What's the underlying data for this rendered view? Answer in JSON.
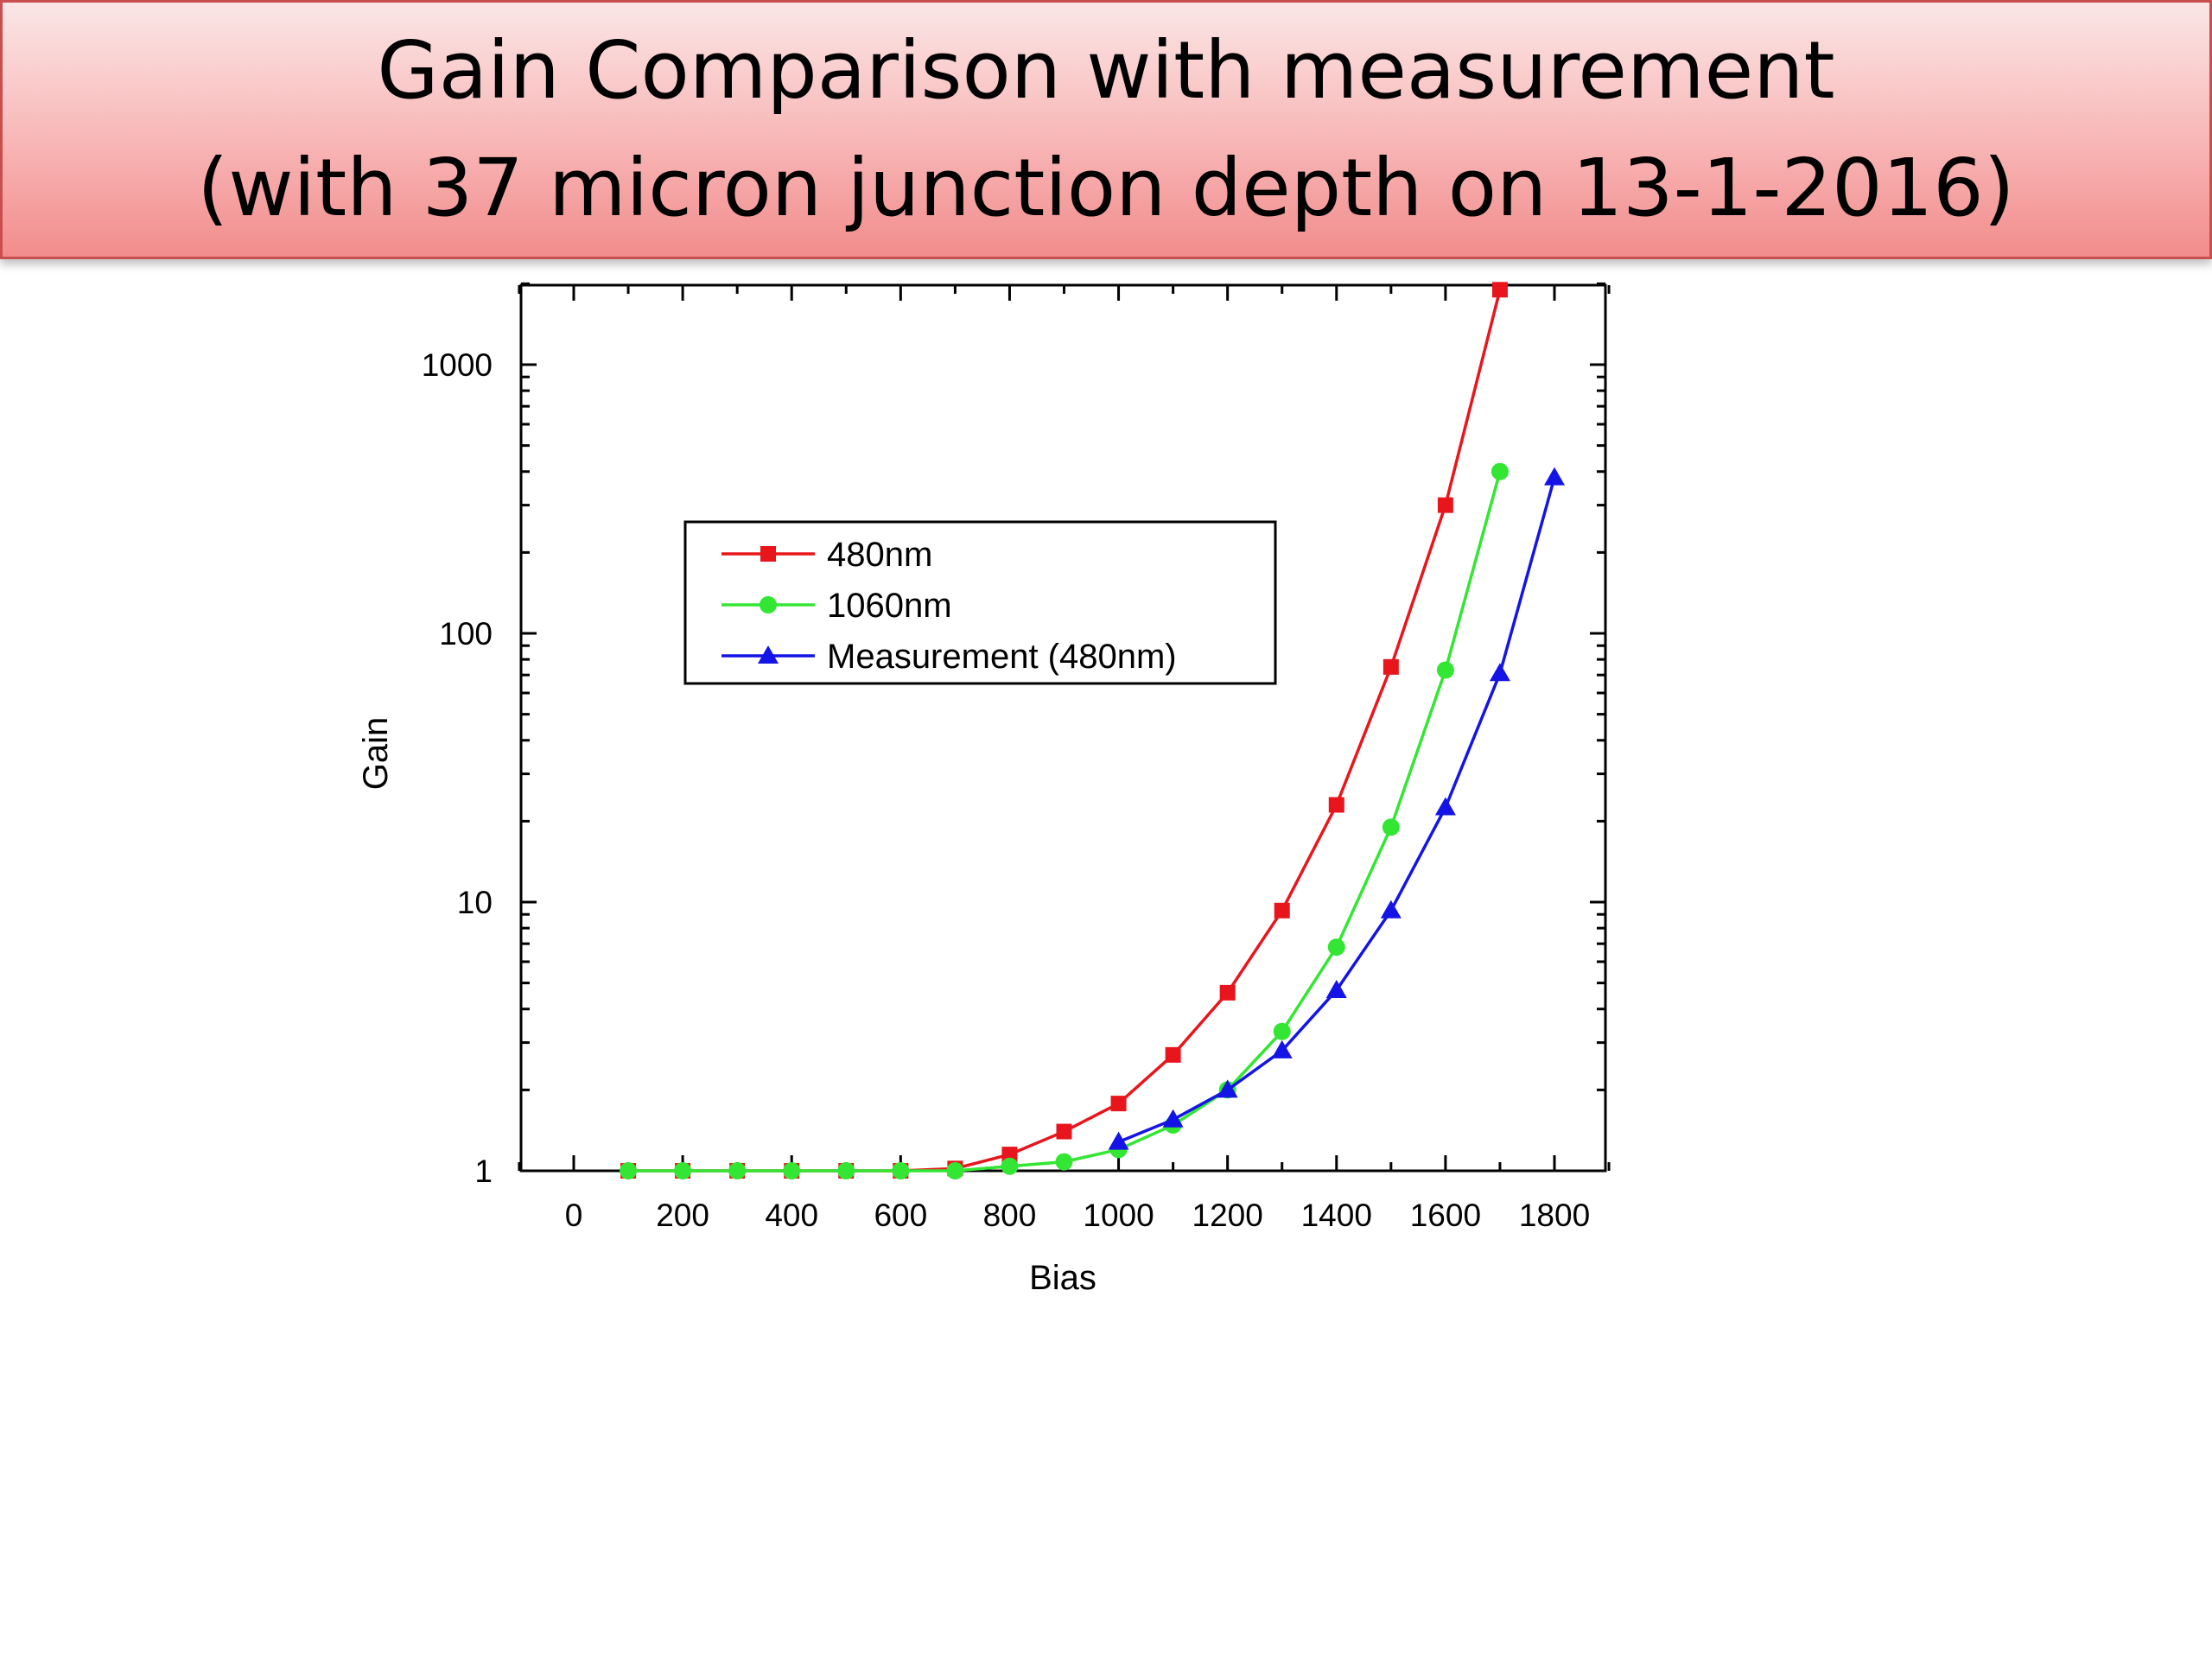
{
  "slide": {
    "title_line1": "Gain Comparison with measurement",
    "title_line2": "(with 37 micron junction depth on 13-1-2016)"
  },
  "chart_data": {
    "type": "line",
    "title": "",
    "xlabel": "Bias",
    "ylabel": "Gain",
    "xlim": [
      -100,
      1900
    ],
    "ylim": [
      1,
      2000
    ],
    "yscale": "log",
    "xticks": [
      0,
      200,
      400,
      600,
      800,
      1000,
      1200,
      1400,
      1600,
      1800
    ],
    "xtick_labels": [
      "0",
      "200",
      "400",
      "600",
      "800",
      "1000",
      "1200",
      "1400",
      "1600",
      "1800"
    ],
    "yticks": [
      1,
      10,
      100,
      1000
    ],
    "ytick_labels": [
      "1",
      "10",
      "100",
      "1000"
    ],
    "grid": false,
    "legend_position": "upper-left",
    "series": [
      {
        "name": "480nm",
        "color": "#e8161c",
        "marker": "square",
        "x": [
          100,
          200,
          300,
          400,
          500,
          600,
          700,
          800,
          900,
          1000,
          1100,
          1200,
          1300,
          1400,
          1500,
          1600,
          1700
        ],
        "y": [
          1.0,
          1.0,
          1.0,
          1.0,
          1.0,
          1.0,
          1.02,
          1.15,
          1.4,
          1.78,
          2.7,
          4.6,
          9.3,
          23,
          75,
          300,
          1900
        ]
      },
      {
        "name": "1060nm",
        "color": "#33e633",
        "marker": "circle",
        "x": [
          100,
          200,
          300,
          400,
          500,
          600,
          700,
          800,
          900,
          1000,
          1100,
          1200,
          1300,
          1400,
          1500,
          1600,
          1700
        ],
        "y": [
          1.0,
          1.0,
          1.0,
          1.0,
          1.0,
          1.0,
          1.0,
          1.04,
          1.08,
          1.2,
          1.48,
          2.0,
          3.3,
          6.8,
          19,
          73,
          400
        ]
      },
      {
        "name": "Measurement (480nm)",
        "color": "#1414e6",
        "marker": "triangle",
        "x": [
          1000,
          1100,
          1200,
          1300,
          1400,
          1500,
          1600,
          1700,
          1800
        ],
        "y": [
          1.28,
          1.55,
          2.0,
          2.8,
          4.7,
          9.3,
          22.5,
          71,
          380
        ]
      }
    ]
  }
}
